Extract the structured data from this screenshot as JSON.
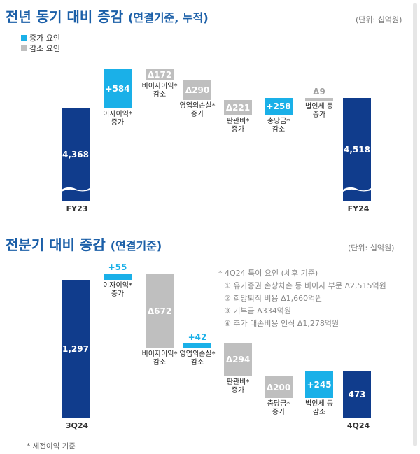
{
  "section1": {
    "title": "전년 동기 대비 증감",
    "subtitle": "(연결기준, 누적)",
    "unit": "(단위: 십억원)",
    "legend": [
      {
        "label": "증가 요인",
        "color": "#1ab0e8"
      },
      {
        "label": "감소 요인",
        "color": "#bfbfbf"
      }
    ],
    "xlabels": [
      "FY23",
      "FY24"
    ]
  },
  "section2": {
    "title": "전분기 대비 증감",
    "subtitle": "(연결기준)",
    "unit": "(단위: 십억원)",
    "xlabels": [
      "3Q24",
      "4Q24"
    ],
    "notes": [
      "* 4Q24 특이 요인 (세후 기준)",
      "① 유가증권 손상차손 등 비이자 부문 Δ2,515억원",
      "② 희망퇴직 비용 Δ1,660억원",
      "③ 기부금 Δ334억원",
      "④ 추가 대손비용 인식 Δ1,278억원"
    ]
  },
  "footnote": "* 세전이익 기준",
  "chart_data": [
    {
      "type": "waterfall",
      "title": "전년 동기 대비 증감 (연결기준, 누적)",
      "unit": "십억원",
      "steps": [
        {
          "label": "FY23",
          "value": 4368,
          "display": "4,368",
          "kind": "base"
        },
        {
          "label": "이자이익* 증가",
          "value": 584,
          "display": "+584",
          "kind": "inc"
        },
        {
          "label": "비이자이익* 감소",
          "value": -172,
          "display": "Δ172",
          "kind": "dec"
        },
        {
          "label": "영업외손실* 증가",
          "value": -290,
          "display": "Δ290",
          "kind": "dec"
        },
        {
          "label": "판관비* 증가",
          "value": -221,
          "display": "Δ221",
          "kind": "dec"
        },
        {
          "label": "충당금* 감소",
          "value": 258,
          "display": "+258",
          "kind": "inc"
        },
        {
          "label": "법인세 등 증가",
          "value": -9,
          "display": "Δ9",
          "kind": "dec"
        },
        {
          "label": "FY24",
          "value": 4518,
          "display": "4,518",
          "kind": "base"
        }
      ]
    },
    {
      "type": "waterfall",
      "title": "전분기 대비 증감 (연결기준)",
      "unit": "십억원",
      "steps": [
        {
          "label": "3Q24",
          "value": 1297,
          "display": "1,297",
          "kind": "base"
        },
        {
          "label": "이자이익* 증가",
          "value": 55,
          "display": "+55",
          "kind": "inc"
        },
        {
          "label": "비이자이익* 감소",
          "value": -672,
          "display": "Δ672",
          "kind": "dec"
        },
        {
          "label": "영업외손실* 감소",
          "value": 42,
          "display": "+42",
          "kind": "inc"
        },
        {
          "label": "판관비* 증가",
          "value": -294,
          "display": "Δ294",
          "kind": "dec"
        },
        {
          "label": "충당금* 증가",
          "value": -200,
          "display": "Δ200",
          "kind": "dec"
        },
        {
          "label": "법인세 등 감소",
          "value": 245,
          "display": "+245",
          "kind": "inc"
        },
        {
          "label": "4Q24",
          "value": 473,
          "display": "473",
          "kind": "base"
        }
      ]
    }
  ]
}
